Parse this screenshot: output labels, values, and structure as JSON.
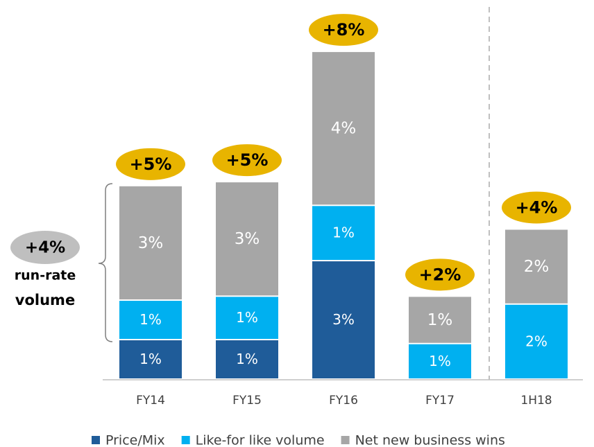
{
  "chart_data": {
    "type": "stacked-bar",
    "categories": [
      "FY14",
      "FY15",
      "FY16",
      "FY17",
      "1H18"
    ],
    "series": [
      {
        "name": "Price/Mix",
        "color": "#1f5c99",
        "values": [
          1.0,
          1.0,
          3.0,
          null,
          null
        ],
        "value_labels": [
          "1%",
          "1%",
          "3%",
          null,
          null
        ]
      },
      {
        "name": "Like-for like volume",
        "color": "#00b0f0",
        "values": [
          1.0,
          1.1,
          1.4,
          0.9,
          1.9
        ],
        "value_labels": [
          "1%",
          "1%",
          "1%",
          "1%",
          "2%"
        ]
      },
      {
        "name": "Net new business wins",
        "color": "#a6a6a6",
        "values": [
          2.9,
          2.9,
          3.9,
          1.2,
          1.9
        ],
        "value_labels": [
          "3%",
          "3%",
          "4%",
          "1%",
          "2%"
        ]
      }
    ],
    "totals": {
      "color": "#e8b400",
      "values": [
        4.9,
        5.0,
        8.3,
        2.1,
        3.8
      ],
      "value_labels": [
        "+5%",
        "+5%",
        "+8%",
        "+2%",
        "+4%"
      ]
    },
    "annotations": [
      "+4%",
      "run-rate",
      "volume"
    ],
    "ylim": [
      0,
      8.6
    ]
  }
}
